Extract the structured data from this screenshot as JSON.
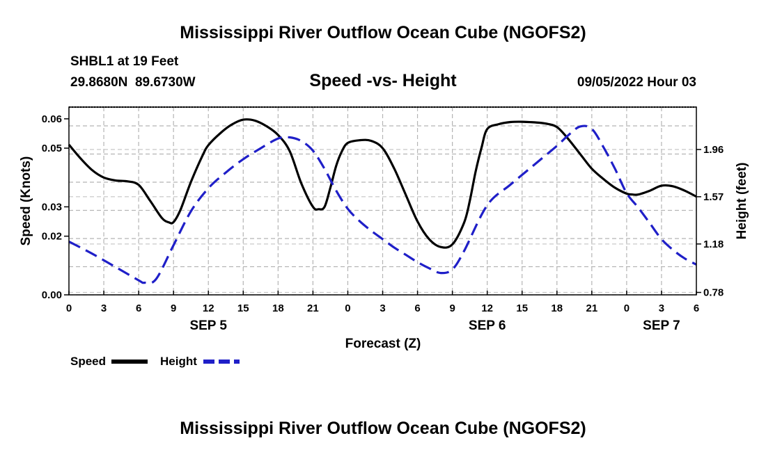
{
  "chart_data": {
    "type": "line",
    "title": "Mississippi River Outflow Ocean Cube (NGOFS2)",
    "subtitle": "Speed -vs- Height",
    "station": "SHBL1 at 19 Feet",
    "location": "29.8680N  89.6730W",
    "date": "09/05/2022 Hour 03",
    "footer_title": "Mississippi River Outflow Ocean Cube (NGOFS2)",
    "xlabel": "Forecast (Z)",
    "ylabel_left": "Speed (Knots)",
    "ylabel_right": "Height (feet)",
    "x_range": [
      0,
      54
    ],
    "y_left_range": [
      0,
      0.064
    ],
    "y_right_range": [
      0.76,
      2.31
    ],
    "x_ticks": [
      {
        "x": 0,
        "label": "0"
      },
      {
        "x": 3,
        "label": "3"
      },
      {
        "x": 6,
        "label": "6"
      },
      {
        "x": 9,
        "label": "9"
      },
      {
        "x": 12,
        "label": "12"
      },
      {
        "x": 15,
        "label": "15"
      },
      {
        "x": 18,
        "label": "18"
      },
      {
        "x": 21,
        "label": "21"
      },
      {
        "x": 24,
        "label": "0"
      },
      {
        "x": 27,
        "label": "3"
      },
      {
        "x": 30,
        "label": "6"
      },
      {
        "x": 33,
        "label": "9"
      },
      {
        "x": 36,
        "label": "12"
      },
      {
        "x": 39,
        "label": "15"
      },
      {
        "x": 42,
        "label": "18"
      },
      {
        "x": 45,
        "label": "21"
      },
      {
        "x": 48,
        "label": "0"
      },
      {
        "x": 51,
        "label": "3"
      },
      {
        "x": 54,
        "label": "6"
      }
    ],
    "date_labels": [
      {
        "x": 12,
        "label": "SEP 5"
      },
      {
        "x": 36,
        "label": "SEP 6"
      },
      {
        "x": 51,
        "label": "SEP 7"
      }
    ],
    "y_left_ticks": [
      {
        "v": 0.0,
        "label": "0.00"
      },
      {
        "v": 0.02,
        "label": "0.02"
      },
      {
        "v": 0.03,
        "label": "0.03"
      },
      {
        "v": 0.05,
        "label": "0.05"
      },
      {
        "v": 0.06,
        "label": "0.06"
      }
    ],
    "y_left_grid": [
      0.0,
      0.0096,
      0.0192,
      0.0288,
      0.0384,
      0.048,
      0.0576,
      0.064
    ],
    "y_right_ticks": [
      {
        "v": 0.78,
        "label": "0.78"
      },
      {
        "v": 1.18,
        "label": "1.18"
      },
      {
        "v": 1.57,
        "label": "1.57"
      },
      {
        "v": 1.96,
        "label": "1.96"
      }
    ],
    "series": [
      {
        "name": "Speed",
        "axis": "left",
        "color": "#000000",
        "dash": "solid",
        "x": [
          0,
          1,
          2,
          3,
          4,
          5,
          6,
          7,
          8,
          8.6,
          9,
          9.6,
          10.5,
          11.5,
          12,
          13,
          14,
          15,
          16,
          17,
          18,
          19,
          20,
          21,
          21.5,
          22,
          22.5,
          23,
          23.5,
          24,
          25,
          26,
          27,
          28,
          29,
          30,
          31,
          32,
          33,
          34,
          34.5,
          35,
          35.5,
          36,
          37,
          38,
          39,
          40,
          41,
          42,
          43,
          44,
          45,
          46,
          47,
          48,
          48.5,
          49,
          50,
          51,
          52,
          53,
          54
        ],
        "y": [
          0.0512,
          0.0465,
          0.0425,
          0.04,
          0.039,
          0.0387,
          0.0375,
          0.032,
          0.0262,
          0.0247,
          0.0248,
          0.029,
          0.0385,
          0.0475,
          0.051,
          0.055,
          0.058,
          0.0597,
          0.0594,
          0.0575,
          0.0545,
          0.049,
          0.038,
          0.03,
          0.0292,
          0.03,
          0.0365,
          0.044,
          0.049,
          0.0518,
          0.0527,
          0.0525,
          0.05,
          0.043,
          0.034,
          0.025,
          0.019,
          0.0163,
          0.0172,
          0.0245,
          0.032,
          0.042,
          0.05,
          0.0565,
          0.0582,
          0.0589,
          0.059,
          0.0588,
          0.0584,
          0.0572,
          0.053,
          0.048,
          0.043,
          0.0395,
          0.0365,
          0.0345,
          0.0342,
          0.0342,
          0.0355,
          0.0372,
          0.037,
          0.0355,
          0.0335
        ]
      },
      {
        "name": "Height",
        "axis": "right",
        "color": "#1f1fc8",
        "dash": "dashed",
        "x": [
          0,
          2,
          4,
          6,
          6.5,
          7.5,
          9,
          10.5,
          12,
          13.5,
          15,
          16.5,
          18,
          19,
          20,
          21,
          22,
          23,
          24,
          25,
          26,
          27,
          28,
          29,
          30,
          31,
          32,
          33,
          34,
          36,
          38,
          40,
          42,
          43,
          44,
          45,
          46,
          47,
          48,
          49,
          50,
          51,
          52,
          53,
          54
        ],
        "y": [
          1.2,
          1.1,
          0.99,
          0.88,
          0.86,
          0.89,
          1.17,
          1.45,
          1.64,
          1.77,
          1.88,
          1.97,
          2.05,
          2.06,
          2.03,
          1.95,
          1.8,
          1.62,
          1.47,
          1.37,
          1.29,
          1.22,
          1.15,
          1.09,
          1.03,
          0.98,
          0.94,
          0.97,
          1.12,
          1.5,
          1.67,
          1.83,
          1.99,
          2.08,
          2.15,
          2.13,
          1.98,
          1.8,
          1.6,
          1.48,
          1.35,
          1.22,
          1.13,
          1.06,
          1.01
        ]
      }
    ],
    "legend": [
      {
        "label": "Speed",
        "color": "#000000",
        "dash": "solid"
      },
      {
        "label": "Height",
        "color": "#1f1fc8",
        "dash": "dashed"
      }
    ]
  }
}
